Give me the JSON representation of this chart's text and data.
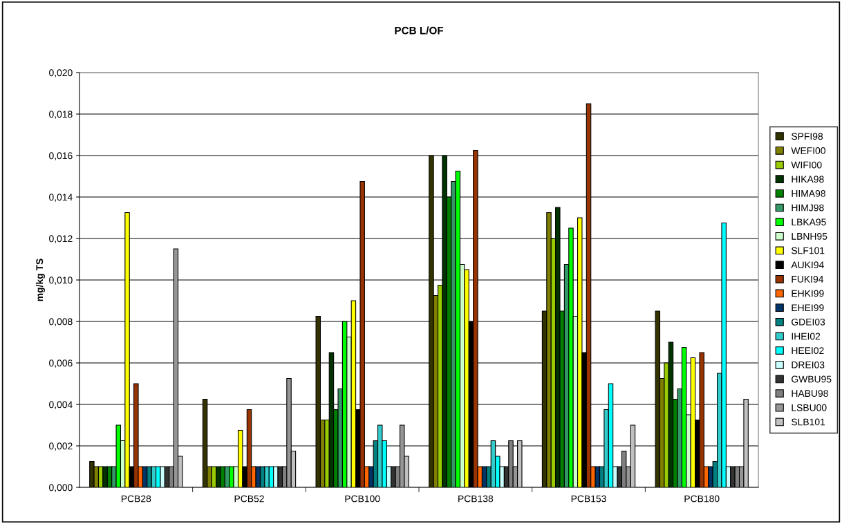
{
  "chart_data": {
    "type": "bar",
    "title": "PCB L/OF",
    "ylabel": "mg/kg TS",
    "categories": [
      "PCB28",
      "PCB52",
      "PCB100",
      "PCB138",
      "PCB153",
      "PCB180"
    ],
    "series": [
      {
        "name": "SPFI98",
        "color": "#333300",
        "values": [
          0.00125,
          0.00425,
          0.00825,
          0.016,
          0.0085,
          0.0085
        ]
      },
      {
        "name": "WEFI00",
        "color": "#808000",
        "values": [
          0.001,
          0.001,
          0.00325,
          0.00925,
          0.01325,
          0.00525
        ]
      },
      {
        "name": "WIFI00",
        "color": "#99cc00",
        "values": [
          0.001,
          0.001,
          0.00325,
          0.00975,
          0.012,
          0.006
        ]
      },
      {
        "name": "HIKA98",
        "color": "#003300",
        "values": [
          0.001,
          0.001,
          0.0065,
          0.016,
          0.0135,
          0.007
        ]
      },
      {
        "name": "HIMA98",
        "color": "#008000",
        "values": [
          0.001,
          0.001,
          0.00375,
          0.014,
          0.0085,
          0.00425
        ]
      },
      {
        "name": "HIMJ98",
        "color": "#339966",
        "values": [
          0.001,
          0.001,
          0.00475,
          0.01475,
          0.01075,
          0.00475
        ]
      },
      {
        "name": "LBKA95",
        "color": "#00ff00",
        "values": [
          0.003,
          0.001,
          0.008,
          0.01525,
          0.0125,
          0.00675
        ]
      },
      {
        "name": "LBNH95",
        "color": "#ccffcc",
        "values": [
          0.00225,
          0.001,
          0.00725,
          0.01075,
          0.00825,
          0.0035
        ]
      },
      {
        "name": "SLF101",
        "color": "#ffff00",
        "values": [
          0.01325,
          0.00275,
          0.009,
          0.0105,
          0.013,
          0.00625
        ]
      },
      {
        "name": "AUKI94",
        "color": "#000000",
        "values": [
          0.001,
          0.001,
          0.00375,
          0.008,
          0.0065,
          0.00325
        ]
      },
      {
        "name": "FUKI94",
        "color": "#993300",
        "values": [
          0.005,
          0.00375,
          0.01475,
          0.01625,
          0.0185,
          0.0065
        ]
      },
      {
        "name": "EHKI99",
        "color": "#ff6600",
        "values": [
          0.001,
          0.001,
          0.001,
          0.001,
          0.001,
          0.001
        ]
      },
      {
        "name": "EHEI99",
        "color": "#003366",
        "values": [
          0.001,
          0.001,
          0.001,
          0.001,
          0.001,
          0.001
        ]
      },
      {
        "name": "GDEI03",
        "color": "#008080",
        "values": [
          0.001,
          0.001,
          0.00225,
          0.001,
          0.001,
          0.00125
        ]
      },
      {
        "name": "IHEI02",
        "color": "#33cccc",
        "values": [
          0.001,
          0.001,
          0.003,
          0.00225,
          0.00375,
          0.0055
        ]
      },
      {
        "name": "HEEI02",
        "color": "#00ffff",
        "values": [
          0.001,
          0.001,
          0.00225,
          0.0015,
          0.005,
          0.01275
        ]
      },
      {
        "name": "DREI03",
        "color": "#ccffff",
        "values": [
          0.001,
          0.001,
          0.001,
          0.001,
          0.001,
          0.001
        ]
      },
      {
        "name": "GWBU95",
        "color": "#333333",
        "values": [
          0.001,
          0.001,
          0.001,
          0.001,
          0.001,
          0.001
        ]
      },
      {
        "name": "HABU98",
        "color": "#808080",
        "values": [
          0.001,
          0.001,
          0.001,
          0.00225,
          0.00175,
          0.001
        ]
      },
      {
        "name": "LSBU00",
        "color": "#969696",
        "values": [
          0.0115,
          0.00525,
          0.003,
          0.001,
          0.001,
          0.001
        ]
      },
      {
        "name": "SLB101",
        "color": "#c0c0c0",
        "values": [
          0.0015,
          0.00175,
          0.0015,
          0.00225,
          0.003,
          0.00425
        ]
      }
    ],
    "ylim": [
      0,
      0.02
    ],
    "yticks": [
      {
        "value": 0,
        "label": "0,000"
      },
      {
        "value": 0.002,
        "label": "0,002"
      },
      {
        "value": 0.004,
        "label": "0,004"
      },
      {
        "value": 0.006,
        "label": "0,006"
      },
      {
        "value": 0.008,
        "label": "0,008"
      },
      {
        "value": 0.01,
        "label": "0,010"
      },
      {
        "value": 0.012,
        "label": "0,012"
      },
      {
        "value": 0.014,
        "label": "0,014"
      },
      {
        "value": 0.016,
        "label": "0,016"
      },
      {
        "value": 0.018,
        "label": "0,018"
      },
      {
        "value": 0.02,
        "label": "0,020"
      }
    ],
    "grid": "y",
    "legend": "right"
  }
}
